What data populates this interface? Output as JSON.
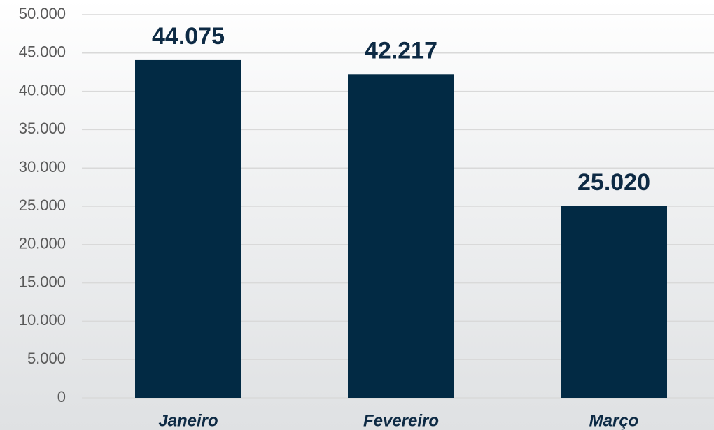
{
  "chart_data": {
    "type": "bar",
    "categories": [
      "Janeiro",
      "Fevereiro",
      "Março"
    ],
    "values": [
      44075,
      42217,
      25020
    ],
    "value_labels": [
      "44.075",
      "42.217",
      "25.020"
    ],
    "color": "#022a44",
    "ylim": [
      0,
      50000
    ],
    "yticks": [
      0,
      {
        "value": 5000,
        "label": "5.000"
      },
      {
        "value": 10000,
        "label": "10.000"
      },
      {
        "value": 15000,
        "label": "15.000"
      },
      {
        "value": 20000,
        "label": "20.000"
      },
      {
        "value": 25000,
        "label": "25.000"
      },
      {
        "value": 30000,
        "label": "30.000"
      },
      {
        "value": 35000,
        "label": "35.000"
      },
      {
        "value": 40000,
        "label": "40.000"
      },
      {
        "value": 45000,
        "label": "45.000"
      },
      {
        "value": 50000,
        "label": "50.000"
      }
    ],
    "grid": true
  }
}
